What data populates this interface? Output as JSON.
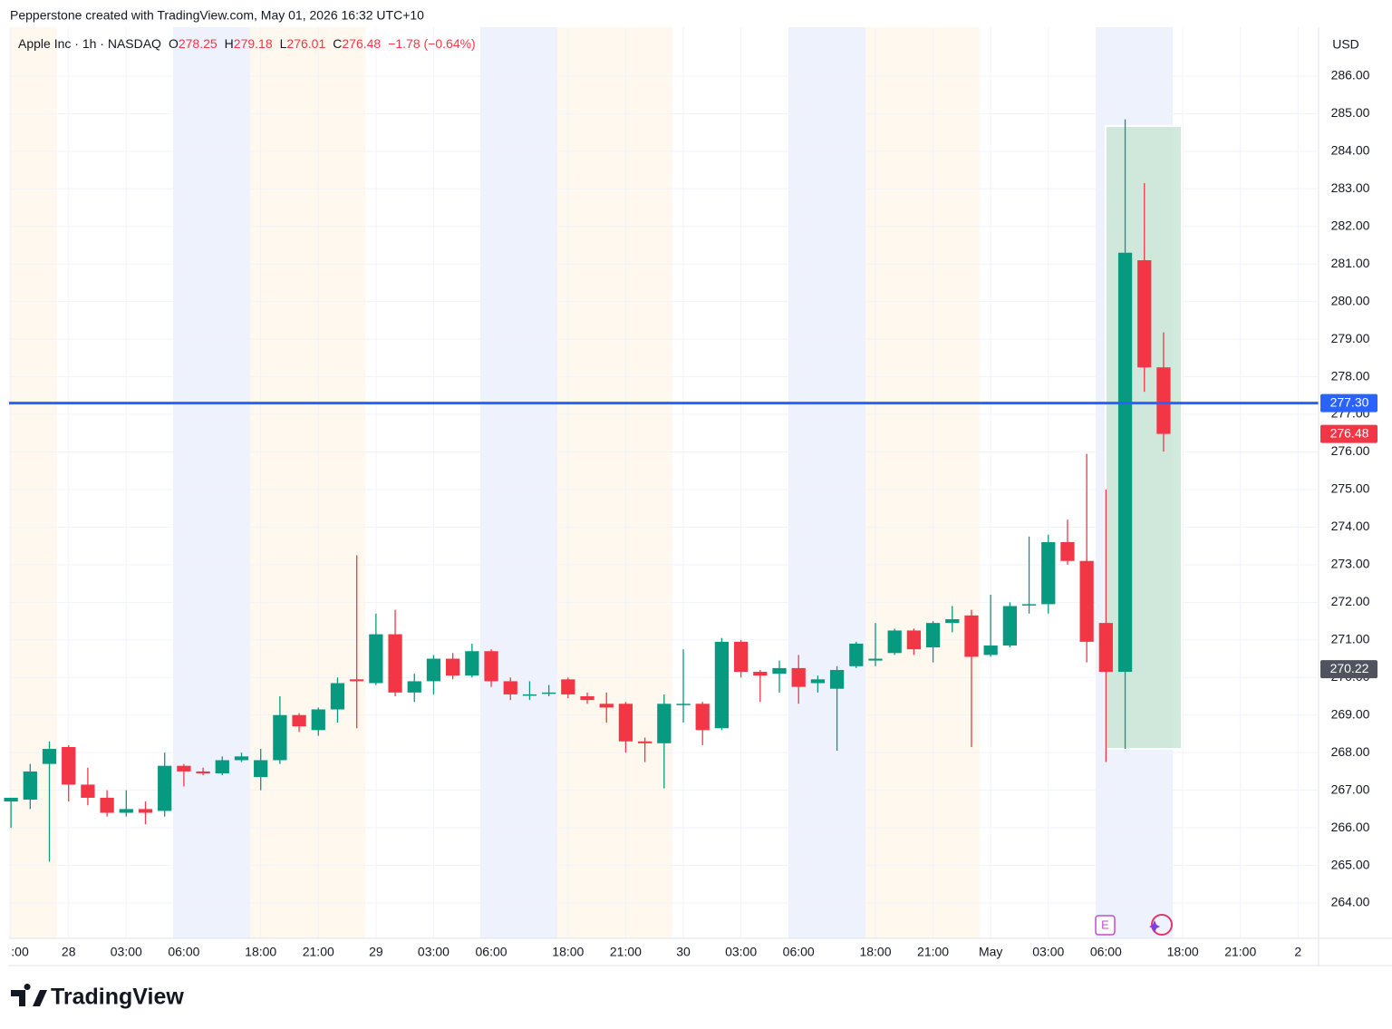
{
  "header": "Pepperstone created with TradingView.com, May 01, 2026 16:32 UTC+10",
  "footer_brand": "TradingView",
  "chart_data": {
    "type": "candlestick",
    "title": "Apple Inc · 1h · NASDAQ",
    "legend": {
      "o_label": "O",
      "open": 278.25,
      "h_label": "H",
      "high": 279.18,
      "l_label": "L",
      "low": 276.01,
      "c_label": "C",
      "close": 276.48,
      "change": "−1.78 (−0.64%)"
    },
    "currency": "USD",
    "up_color": "#089981",
    "down_color": "#f23645",
    "candles": {
      "open": [
        266.7,
        266.75,
        267.7,
        268.15,
        267.15,
        266.8,
        266.4,
        266.5,
        266.45,
        267.65,
        267.5,
        267.45,
        267.8,
        267.35,
        267.8,
        269.0,
        268.6,
        269.15,
        269.95,
        269.85,
        271.15,
        269.6,
        269.9,
        270.5,
        270.05,
        270.7,
        269.9,
        269.55,
        269.6,
        269.95,
        269.5,
        269.3,
        269.3,
        268.3,
        268.25,
        269.3,
        269.3,
        268.65,
        270.95,
        270.15,
        270.1,
        270.25,
        269.85,
        269.7,
        270.3,
        270.45,
        270.65,
        271.25,
        270.8,
        271.45,
        271.65,
        270.6,
        270.85,
        271.95,
        271.95,
        273.6,
        273.1,
        271.45,
        270.15,
        281.1,
        278.25
      ],
      "high": [
        266.8,
        267.7,
        268.3,
        268.2,
        267.6,
        267.0,
        267.0,
        266.7,
        268.0,
        267.7,
        267.6,
        267.9,
        268.0,
        268.1,
        269.5,
        269.05,
        269.2,
        270.0,
        273.25,
        271.7,
        271.8,
        270.1,
        270.6,
        270.65,
        270.9,
        270.75,
        270.0,
        269.9,
        269.8,
        270.0,
        269.6,
        269.6,
        269.35,
        268.4,
        269.55,
        270.75,
        269.35,
        271.05,
        271.0,
        270.2,
        270.45,
        270.6,
        270.05,
        270.3,
        270.95,
        271.45,
        271.3,
        271.3,
        271.5,
        271.9,
        271.8,
        272.2,
        272.0,
        273.75,
        273.8,
        274.2,
        275.95,
        275.0,
        284.85,
        283.15,
        279.18
      ],
      "low": [
        266.0,
        266.5,
        265.1,
        266.7,
        266.6,
        266.3,
        266.3,
        266.1,
        266.3,
        267.1,
        267.4,
        267.4,
        267.75,
        267.0,
        267.7,
        268.55,
        268.45,
        268.8,
        268.65,
        269.8,
        269.5,
        269.35,
        269.55,
        269.95,
        270.0,
        269.75,
        269.4,
        269.4,
        269.5,
        269.45,
        269.3,
        268.8,
        268.0,
        267.75,
        267.05,
        268.8,
        268.2,
        268.6,
        270.0,
        269.35,
        269.6,
        269.3,
        269.6,
        268.05,
        270.25,
        270.3,
        270.6,
        270.6,
        270.4,
        271.2,
        268.15,
        270.55,
        270.8,
        271.7,
        271.7,
        273.0,
        270.4,
        267.75,
        268.1,
        277.6,
        276.01
      ],
      "close": [
        266.8,
        267.5,
        268.1,
        267.15,
        266.8,
        266.4,
        266.5,
        266.4,
        267.65,
        267.5,
        267.45,
        267.8,
        267.9,
        267.8,
        269.0,
        268.7,
        269.15,
        269.85,
        269.9,
        271.15,
        269.6,
        269.9,
        270.5,
        270.05,
        270.7,
        269.9,
        269.55,
        269.55,
        269.6,
        269.55,
        269.4,
        269.2,
        268.3,
        268.25,
        269.3,
        269.3,
        268.6,
        270.95,
        270.15,
        270.05,
        270.25,
        269.75,
        269.95,
        270.2,
        270.9,
        270.5,
        271.25,
        270.75,
        271.45,
        271.55,
        270.55,
        270.85,
        271.9,
        271.95,
        273.6,
        273.1,
        270.95,
        270.15,
        281.3,
        278.25,
        276.48
      ]
    },
    "xlim": [
      -0.1,
      68.07
    ],
    "xticks": [
      {
        "value": 0,
        "label": ":00"
      },
      {
        "value": 3,
        "label": "28"
      },
      {
        "value": 6,
        "label": "03:00"
      },
      {
        "value": 9,
        "label": "06:00"
      },
      {
        "value": 13,
        "label": "18:00"
      },
      {
        "value": 16,
        "label": "21:00"
      },
      {
        "value": 19,
        "label": "29"
      },
      {
        "value": 22,
        "label": "03:00"
      },
      {
        "value": 25,
        "label": "06:00"
      },
      {
        "value": 29,
        "label": "18:00"
      },
      {
        "value": 32,
        "label": "21:00"
      },
      {
        "value": 35,
        "label": "30"
      },
      {
        "value": 38,
        "label": "03:00"
      },
      {
        "value": 41,
        "label": "06:00"
      },
      {
        "value": 45,
        "label": "18:00"
      },
      {
        "value": 48,
        "label": "21:00"
      },
      {
        "value": 51,
        "label": "May"
      },
      {
        "value": 54,
        "label": "03:00"
      },
      {
        "value": 57,
        "label": "06:00"
      },
      {
        "value": 61,
        "label": "18:00"
      },
      {
        "value": 64,
        "label": "21:00"
      },
      {
        "value": 67,
        "label": "2"
      }
    ],
    "ylim": [
      263.06,
      287.3
    ],
    "yticks": [
      {
        "value": 264,
        "label": "264.00"
      },
      {
        "value": 265,
        "label": "265.00"
      },
      {
        "value": 266,
        "label": "266.00"
      },
      {
        "value": 267,
        "label": "267.00"
      },
      {
        "value": 268,
        "label": "268.00"
      },
      {
        "value": 269,
        "label": "269.00"
      },
      {
        "value": 270,
        "label": "270.00"
      },
      {
        "value": 271,
        "label": "271.00"
      },
      {
        "value": 272,
        "label": "272.00"
      },
      {
        "value": 273,
        "label": "273.00"
      },
      {
        "value": 274,
        "label": "274.00"
      },
      {
        "value": 275,
        "label": "275.00"
      },
      {
        "value": 276,
        "label": "276.00"
      },
      {
        "value": 277,
        "label": "277.00"
      },
      {
        "value": 278,
        "label": "278.00"
      },
      {
        "value": 279,
        "label": "279.00"
      },
      {
        "value": 280,
        "label": "280.00"
      },
      {
        "value": 281,
        "label": "281.00"
      },
      {
        "value": 282,
        "label": "282.00"
      },
      {
        "value": 283,
        "label": "283.00"
      },
      {
        "value": 284,
        "label": "284.00"
      },
      {
        "value": 285,
        "label": "285.00"
      },
      {
        "value": 286,
        "label": "286.00"
      }
    ],
    "grid": true,
    "price_line": {
      "value": 277.3,
      "label": "277.30",
      "color": "#2962ff"
    },
    "last_price": {
      "value": 276.48,
      "label": "276.48",
      "color": "#f23645"
    },
    "marker_price": {
      "value": 270.22,
      "label": "270.22",
      "color": "#50535e"
    },
    "event_icon": "E"
  }
}
